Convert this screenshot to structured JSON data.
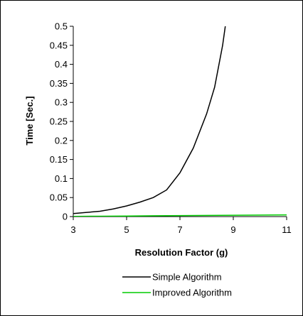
{
  "chart_data": {
    "type": "line",
    "xlabel": "Resolution Factor (g)",
    "ylabel": "Time [Sec.]",
    "xlim": [
      3,
      11
    ],
    "ylim": [
      0,
      0.5
    ],
    "xticks": [
      "3",
      "5",
      "7",
      "9",
      "11"
    ],
    "xtick_values": [
      3,
      5,
      7,
      9,
      11
    ],
    "yticks": [
      "0",
      "0.05",
      "0.1",
      "0.15",
      "0.2",
      "0.25",
      "0.3",
      "0.35",
      "0.4",
      "0.45",
      "0.5"
    ],
    "ytick_values": [
      0,
      0.05,
      0.1,
      0.15,
      0.2,
      0.25,
      0.3,
      0.35,
      0.4,
      0.45,
      0.5
    ],
    "grid": false,
    "legend_position": "bottom",
    "series": [
      {
        "name": "Simple Algorithm",
        "color": "#000000",
        "x": [
          3,
          3.5,
          4,
          4.5,
          5,
          5.5,
          6,
          6.5,
          7,
          7.5,
          8,
          8.3,
          8.6,
          8.7
        ],
        "y": [
          0.008,
          0.011,
          0.014,
          0.02,
          0.028,
          0.038,
          0.05,
          0.07,
          0.115,
          0.18,
          0.27,
          0.34,
          0.45,
          0.5
        ]
      },
      {
        "name": "Improved Algorithm",
        "color": "#00cc00",
        "x": [
          3,
          4,
          5,
          6,
          7,
          8,
          9,
          10,
          11
        ],
        "y": [
          0.0005,
          0.001,
          0.0015,
          0.002,
          0.0025,
          0.003,
          0.0035,
          0.004,
          0.0045
        ]
      }
    ]
  }
}
